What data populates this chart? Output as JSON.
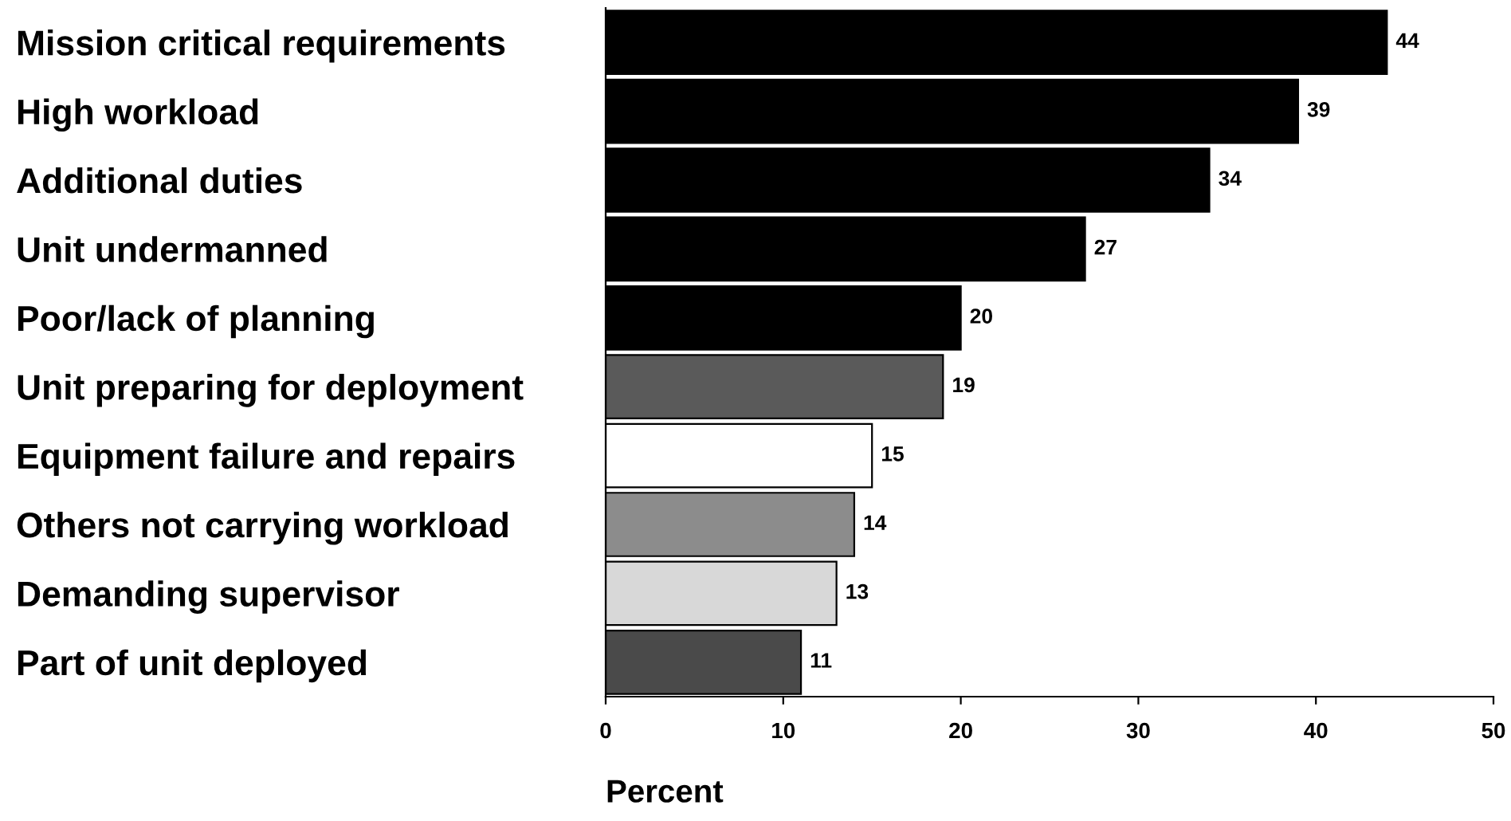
{
  "chart_data": {
    "type": "bar",
    "orientation": "horizontal",
    "xlabel": "Percent",
    "categories": [
      "Mission critical requirements",
      "High workload",
      "Additional duties",
      "Unit undermanned",
      "Poor/lack of planning",
      "Unit preparing for deployment",
      "Equipment failure and repairs",
      "Others not carrying workload",
      "Demanding supervisor",
      "Part of unit deployed"
    ],
    "values": [
      44,
      39,
      34,
      27,
      20,
      19,
      15,
      14,
      13,
      11
    ],
    "colors": [
      "#000000",
      "#000000",
      "#000000",
      "#000000",
      "#000000",
      "#5a5a5a",
      "#ffffff",
      "#8c8c8c",
      "#d8d8d8",
      "#4a4a4a"
    ],
    "xlim": [
      0,
      50
    ],
    "xticks": [
      0,
      10,
      20,
      30,
      40,
      50
    ],
    "data_labels": true,
    "grid": false
  }
}
